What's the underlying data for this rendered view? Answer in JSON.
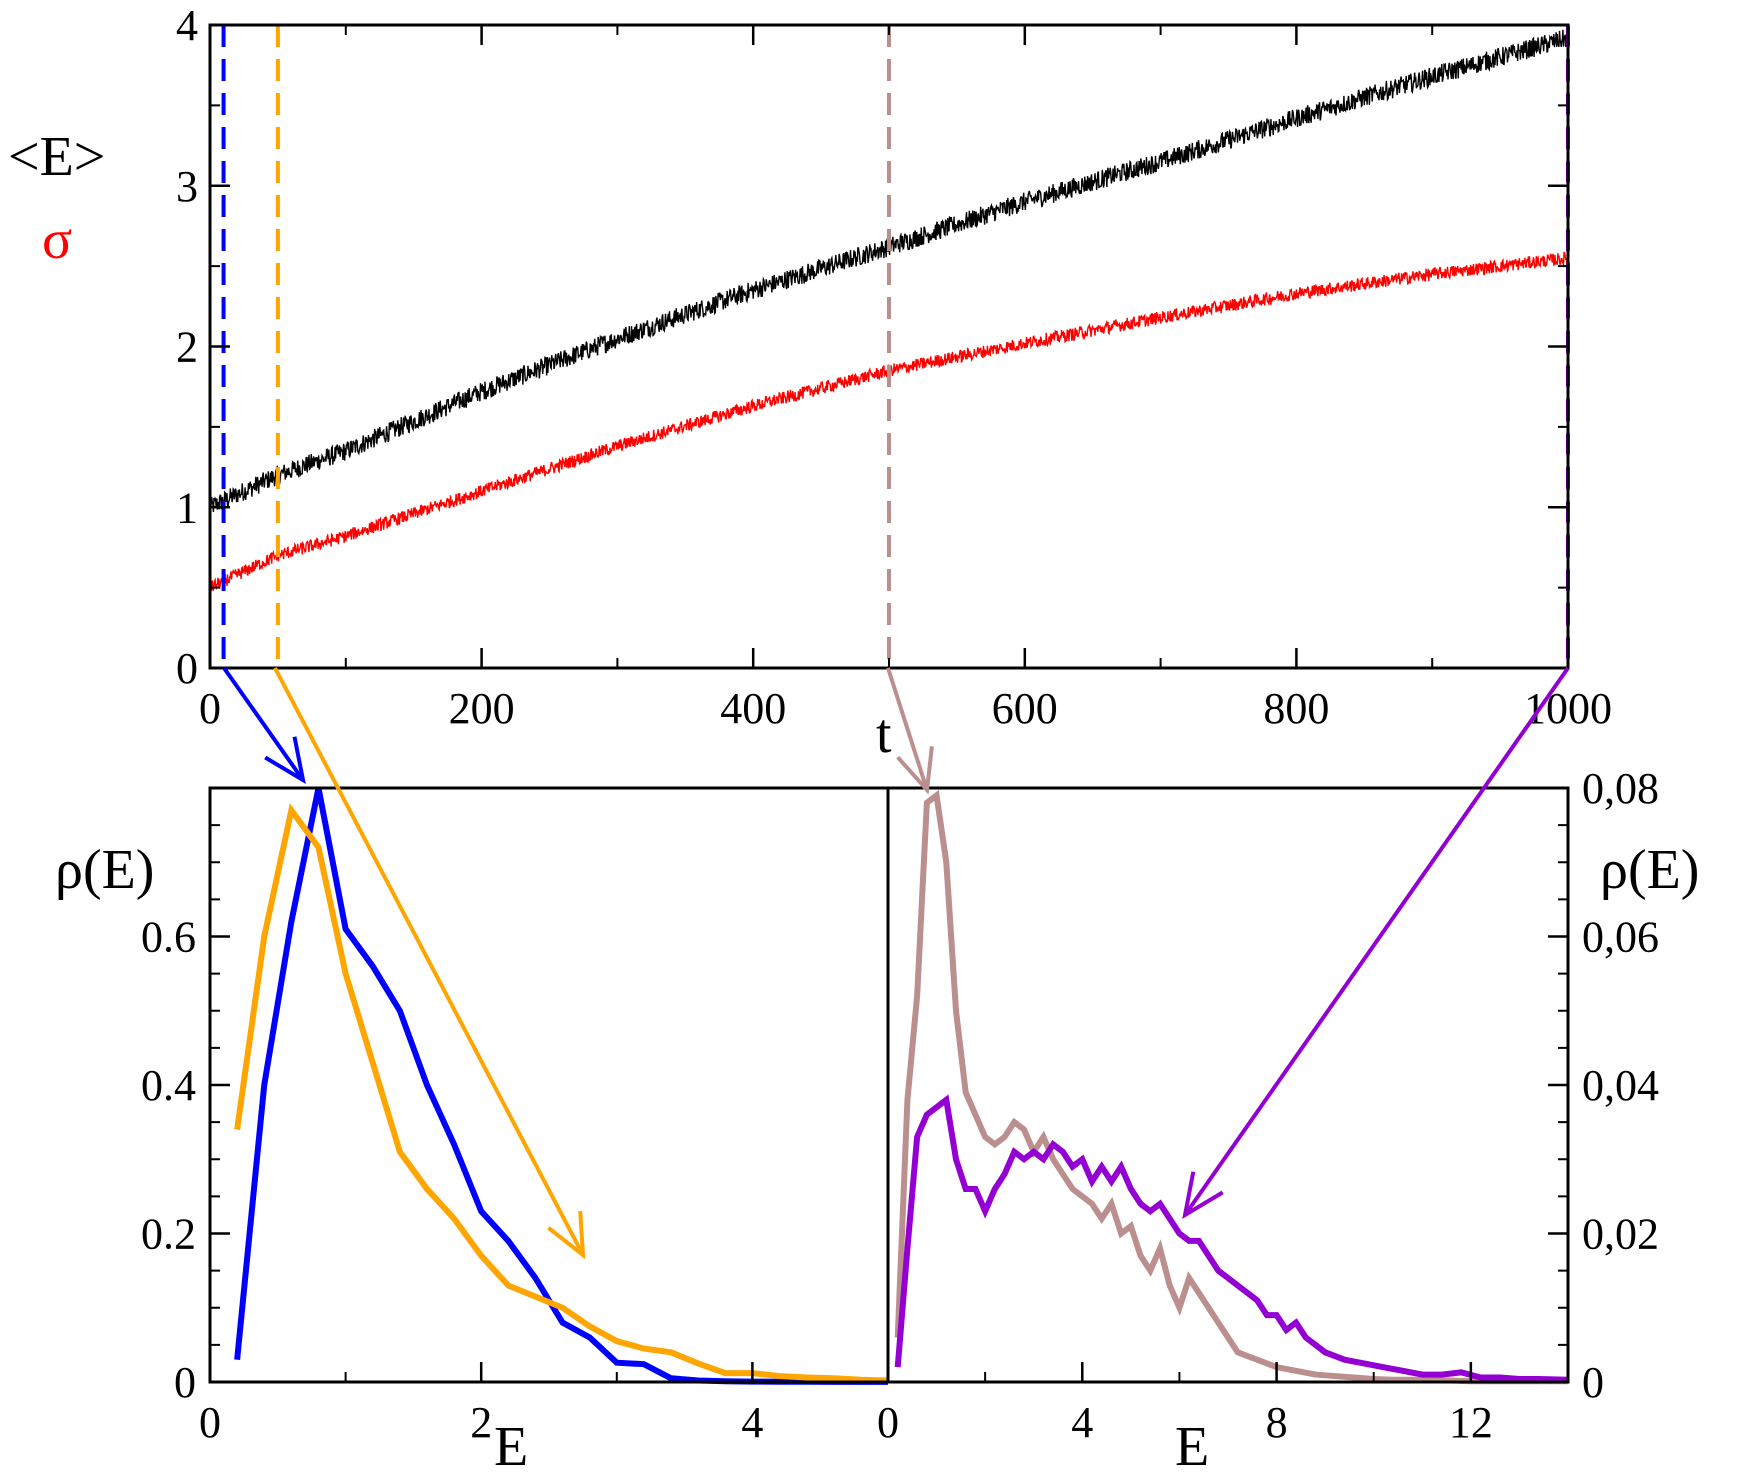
{
  "chart_data": [
    {
      "id": "top",
      "type": "line",
      "xlabel": "t",
      "ylabel": "<E>",
      "ylabel2": "σ",
      "xlim": [
        0,
        1000
      ],
      "ylim": [
        0,
        4
      ],
      "xticks": [
        "0",
        "200",
        "400",
        "600",
        "800",
        "1000"
      ],
      "yticks": [
        "0",
        "1",
        "2",
        "3",
        "4"
      ],
      "series": [
        {
          "name": "<E>",
          "color": "#000000",
          "x": [
            0,
            50,
            100,
            200,
            300,
            400,
            500,
            600,
            700,
            800,
            900,
            1000
          ],
          "values": [
            1.0,
            1.2,
            1.35,
            1.72,
            2.05,
            2.35,
            2.62,
            2.9,
            3.15,
            3.42,
            3.68,
            3.92
          ],
          "noise": 0.06
        },
        {
          "name": "σ",
          "color": "#ff0000",
          "x": [
            0,
            50,
            100,
            200,
            300,
            400,
            500,
            600,
            700,
            800,
            900,
            1000
          ],
          "values": [
            0.5,
            0.7,
            0.82,
            1.1,
            1.38,
            1.63,
            1.85,
            2.02,
            2.18,
            2.33,
            2.45,
            2.55
          ],
          "noise": 0.04
        }
      ],
      "markers": [
        {
          "name": "t-blue",
          "t": 10,
          "color": "#0000ff"
        },
        {
          "name": "t-orange",
          "t": 50,
          "color": "#ffa500"
        },
        {
          "name": "t-brown",
          "t": 500,
          "color": "#bc8f8f"
        },
        {
          "name": "t-purple",
          "t": 1000,
          "color": "#9400d3"
        }
      ]
    },
    {
      "id": "bottom-left",
      "type": "line",
      "xlabel": "E",
      "ylabel": "ρ(E)",
      "xlim": [
        0,
        5
      ],
      "ylim": [
        0,
        0.8
      ],
      "xticks": [
        "0",
        "2",
        "4"
      ],
      "yticks": [
        "0",
        "0.2",
        "0.4",
        "0.6"
      ],
      "series": [
        {
          "name": "blue",
          "color": "#0000ff",
          "x": [
            0.2,
            0.4,
            0.6,
            0.8,
            1.0,
            1.2,
            1.4,
            1.6,
            1.8,
            2.0,
            2.2,
            2.4,
            2.6,
            2.8,
            3.0,
            3.2,
            3.4,
            3.6,
            3.8,
            4.0,
            4.2,
            4.4,
            4.6,
            4.8,
            5.0
          ],
          "values": [
            0.03,
            0.4,
            0.62,
            0.8,
            0.61,
            0.56,
            0.5,
            0.4,
            0.32,
            0.23,
            0.19,
            0.14,
            0.08,
            0.06,
            0.026,
            0.024,
            0.005,
            0.002,
            0.001,
            0.0005,
            0.0004,
            0.0003,
            0.0002,
            0.0002,
            0.0001
          ]
        },
        {
          "name": "orange",
          "color": "#ffa500",
          "x": [
            0.2,
            0.4,
            0.6,
            0.8,
            1.0,
            1.2,
            1.4,
            1.6,
            1.8,
            2.0,
            2.2,
            2.4,
            2.6,
            2.8,
            3.0,
            3.2,
            3.4,
            3.6,
            3.8,
            4.0,
            4.2,
            4.4,
            4.6,
            4.8,
            5.0
          ],
          "values": [
            0.34,
            0.6,
            0.77,
            0.72,
            0.55,
            0.43,
            0.31,
            0.26,
            0.22,
            0.17,
            0.13,
            0.115,
            0.1,
            0.075,
            0.055,
            0.045,
            0.04,
            0.025,
            0.012,
            0.012,
            0.008,
            0.006,
            0.005,
            0.003,
            0.002
          ]
        }
      ]
    },
    {
      "id": "bottom-right",
      "type": "line",
      "xlabel": "E",
      "ylabel": "ρ(E)",
      "xlim": [
        0,
        14
      ],
      "ylim": [
        0,
        0.08
      ],
      "xticks": [
        "0",
        "4",
        "8",
        "12"
      ],
      "yticks": [
        "0",
        "0,02",
        "0,04",
        "0,06",
        "0,08"
      ],
      "series": [
        {
          "name": "brown",
          "color": "#bc8f8f",
          "x": [
            0.2,
            0.4,
            0.6,
            0.8,
            1.0,
            1.2,
            1.4,
            1.6,
            1.8,
            2.0,
            2.2,
            2.4,
            2.6,
            2.8,
            3.0,
            3.2,
            3.4,
            3.6,
            3.8,
            4.0,
            4.2,
            4.4,
            4.6,
            4.8,
            5.0,
            5.2,
            5.4,
            5.6,
            5.8,
            6.0,
            6.2,
            6.4,
            6.6,
            6.8,
            7.0,
            7.2,
            7.4,
            7.6,
            7.8,
            8.0,
            8.4,
            8.8,
            9.2,
            9.6,
            10.0,
            10.4,
            10.8,
            11.2,
            11.6,
            12.0,
            12.4,
            12.8,
            13.2,
            13.6,
            14.0
          ],
          "values": [
            0.006,
            0.038,
            0.052,
            0.078,
            0.079,
            0.07,
            0.05,
            0.039,
            0.036,
            0.033,
            0.032,
            0.033,
            0.035,
            0.034,
            0.031,
            0.033,
            0.03,
            0.028,
            0.026,
            0.025,
            0.024,
            0.022,
            0.024,
            0.02,
            0.021,
            0.017,
            0.015,
            0.018,
            0.013,
            0.01,
            0.014,
            0.012,
            0.01,
            0.008,
            0.006,
            0.004,
            0.0035,
            0.003,
            0.0025,
            0.002,
            0.0015,
            0.001,
            0.0008,
            0.0006,
            0.0004,
            0.0003,
            0.0003,
            0.0002,
            0.0002,
            0.0001,
            0.0001,
            0.0001,
            0.0001,
            0.0001,
            0.0001
          ]
        },
        {
          "name": "purple",
          "color": "#9400d3",
          "x": [
            0.2,
            0.4,
            0.6,
            0.8,
            1.0,
            1.2,
            1.4,
            1.6,
            1.8,
            2.0,
            2.2,
            2.4,
            2.6,
            2.8,
            3.0,
            3.2,
            3.4,
            3.6,
            3.8,
            4.0,
            4.2,
            4.4,
            4.6,
            4.8,
            5.0,
            5.2,
            5.4,
            5.6,
            5.8,
            6.0,
            6.2,
            6.4,
            6.6,
            6.8,
            7.0,
            7.2,
            7.4,
            7.6,
            7.8,
            8.0,
            8.2,
            8.4,
            8.6,
            8.8,
            9.0,
            9.4,
            9.8,
            10.2,
            10.6,
            11.0,
            11.4,
            11.8,
            12.2,
            12.6,
            13.0,
            13.4,
            14.0
          ],
          "values": [
            0.002,
            0.018,
            0.033,
            0.036,
            0.037,
            0.038,
            0.03,
            0.026,
            0.026,
            0.023,
            0.026,
            0.028,
            0.031,
            0.03,
            0.031,
            0.03,
            0.032,
            0.031,
            0.029,
            0.03,
            0.027,
            0.029,
            0.027,
            0.029,
            0.026,
            0.024,
            0.023,
            0.024,
            0.022,
            0.02,
            0.019,
            0.019,
            0.017,
            0.015,
            0.014,
            0.013,
            0.012,
            0.011,
            0.009,
            0.009,
            0.007,
            0.008,
            0.006,
            0.005,
            0.004,
            0.003,
            0.0025,
            0.002,
            0.0015,
            0.001,
            0.001,
            0.0013,
            0.0006,
            0.0006,
            0.0004,
            0.0004,
            0.0003
          ]
        }
      ]
    }
  ],
  "connectors": [
    {
      "name": "blue-arrow",
      "color": "#0000ff"
    },
    {
      "name": "orange-arrow",
      "color": "#ffa500"
    },
    {
      "name": "brown-arrow",
      "color": "#bc8f8f"
    },
    {
      "name": "purple-arrow",
      "color": "#9400d3"
    }
  ]
}
